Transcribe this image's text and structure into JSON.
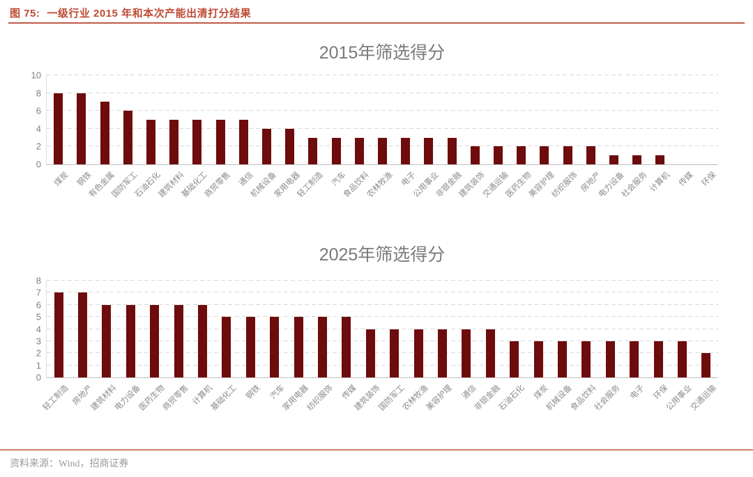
{
  "header": {
    "figure_label": "图 75:",
    "title": "一级行业 2015 年和本次产能出清打分结果"
  },
  "chart_data": [
    {
      "type": "bar",
      "title": "2015年筛选得分",
      "xlabel": "",
      "ylabel": "",
      "ylim": [
        0,
        10
      ],
      "yticks": [
        0,
        2,
        4,
        6,
        8,
        10
      ],
      "grid": "dashed-horizontal",
      "legend": "none",
      "bar_color": "#6E0B0C",
      "categories": [
        "煤炭",
        "钢铁",
        "有色金属",
        "国防军工",
        "石油石化",
        "建筑材料",
        "基础化工",
        "商贸零售",
        "通信",
        "机械设备",
        "家用电器",
        "轻工制造",
        "汽车",
        "食品饮料",
        "农林牧渔",
        "电子",
        "公用事业",
        "非银金融",
        "建筑装饰",
        "交通运输",
        "医药生物",
        "美容护理",
        "纺织服饰",
        "房地产",
        "电力设备",
        "社会服务",
        "计算机",
        "传媒",
        "环保"
      ],
      "values": [
        8,
        8,
        7,
        6,
        5,
        5,
        5,
        5,
        5,
        4,
        4,
        3,
        3,
        3,
        3,
        3,
        3,
        3,
        2,
        2,
        2,
        2,
        2,
        2,
        1,
        1,
        1,
        0,
        0
      ]
    },
    {
      "type": "bar",
      "title": "2025年筛选得分",
      "xlabel": "",
      "ylabel": "",
      "ylim": [
        0,
        8
      ],
      "yticks": [
        0,
        1,
        2,
        3,
        4,
        5,
        6,
        7,
        8
      ],
      "grid": "dashed-horizontal",
      "legend": "none",
      "bar_color": "#6E0B0C",
      "categories": [
        "轻工制造",
        "房地产",
        "建筑材料",
        "电力设备",
        "医药生物",
        "商贸零售",
        "计算机",
        "基础化工",
        "钢铁",
        "汽车",
        "家用电器",
        "纺织服饰",
        "传媒",
        "建筑装饰",
        "国防军工",
        "农林牧渔",
        "美容护理",
        "通信",
        "非银金融",
        "石油石化",
        "煤炭",
        "机械设备",
        "食品饮料",
        "社会服务",
        "电子",
        "环保",
        "公用事业",
        "交通运输"
      ],
      "values": [
        7,
        7,
        6,
        6,
        6,
        6,
        6,
        5,
        5,
        5,
        5,
        5,
        5,
        4,
        4,
        4,
        4,
        4,
        4,
        3,
        3,
        3,
        3,
        3,
        3,
        3,
        3,
        2
      ]
    }
  ],
  "footer": {
    "source": "资料来源：Wind，招商证券"
  },
  "colors": {
    "bar": "#6E0B0C",
    "header_accent": "#BE4B35",
    "footer_rule": "#CD8163",
    "gridline": "#D9D9D9",
    "axis_text": "#7F7F7F",
    "chart_title_text": "#7A7A7A"
  }
}
